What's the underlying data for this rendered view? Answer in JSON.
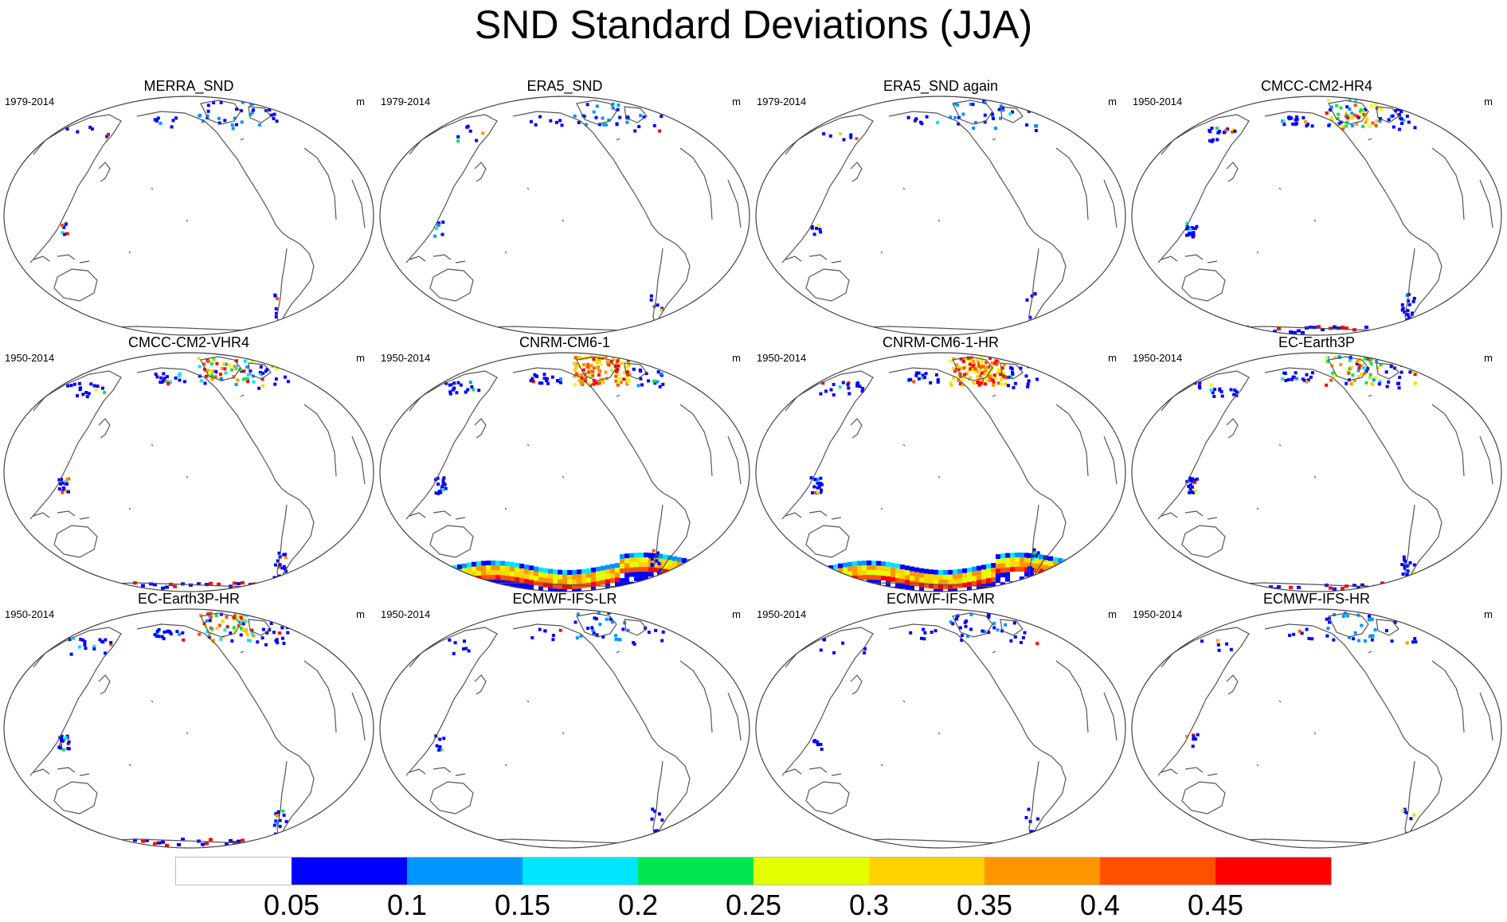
{
  "title": "SND Standard Deviations (JJA)",
  "colorbar": {
    "colors": [
      "#ffffff",
      "#0000ff",
      "#0096ff",
      "#00e6ff",
      "#00e650",
      "#e6ff00",
      "#ffd200",
      "#ff9600",
      "#ff5000",
      "#ff0000"
    ],
    "labels": [
      "0.05",
      "0.1",
      "0.15",
      "0.2",
      "0.25",
      "0.3",
      "0.35",
      "0.4",
      "0.45"
    ]
  },
  "panels": [
    {
      "title": "MERRA_SND",
      "period": "1979-2014",
      "units": "m",
      "snow_level": 1,
      "antarctic_level": 0
    },
    {
      "title": "ERA5_SND",
      "period": "1979-2014",
      "units": "m",
      "snow_level": 1,
      "antarctic_level": 0
    },
    {
      "title": "ERA5_SND again",
      "period": "1979-2014",
      "units": "m",
      "snow_level": 1,
      "antarctic_level": 0
    },
    {
      "title": "CMCC-CM2-HR4",
      "period": "1950-2014",
      "units": "m",
      "snow_level": 2,
      "antarctic_level": 1
    },
    {
      "title": "CMCC-CM2-VHR4",
      "period": "1950-2014",
      "units": "m",
      "snow_level": 2,
      "antarctic_level": 1
    },
    {
      "title": "CNRM-CM6-1",
      "period": "1950-2014",
      "units": "m",
      "snow_level": 3,
      "antarctic_level": 3
    },
    {
      "title": "CNRM-CM6-1-HR",
      "period": "1950-2014",
      "units": "m",
      "snow_level": 3,
      "antarctic_level": 3
    },
    {
      "title": "EC-Earth3P",
      "period": "1950-2014",
      "units": "m",
      "snow_level": 2,
      "antarctic_level": 1
    },
    {
      "title": "EC-Earth3P-HR",
      "period": "1950-2014",
      "units": "m",
      "snow_level": 2,
      "antarctic_level": 1
    },
    {
      "title": "ECMWF-IFS-LR",
      "period": "1950-2014",
      "units": "m",
      "snow_level": 1,
      "antarctic_level": 0
    },
    {
      "title": "ECMWF-IFS-MR",
      "period": "1950-2014",
      "units": "m",
      "snow_level": 1,
      "antarctic_level": 0
    },
    {
      "title": "ECMWF-IFS-HR",
      "period": "1950-2014",
      "units": "m",
      "snow_level": 1,
      "antarctic_level": 0
    }
  ]
}
